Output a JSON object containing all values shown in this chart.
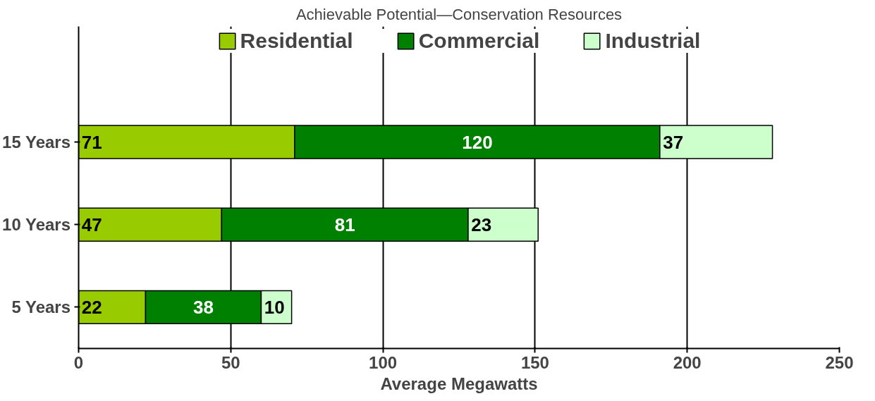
{
  "chart_data": {
    "type": "bar",
    "orientation": "horizontal",
    "stacked": true,
    "title": "Achievable Potential—Conservation Resources",
    "xlabel": "Average Megawatts",
    "categories": [
      "15 Years",
      "10 Years",
      "5 Years"
    ],
    "series": [
      {
        "name": "Residential",
        "color": "#99cc00",
        "values": [
          71,
          47,
          22
        ]
      },
      {
        "name": "Commercial",
        "color": "#008000",
        "values": [
          120,
          81,
          38
        ]
      },
      {
        "name": "Industrial",
        "color": "#ccffcc",
        "values": [
          37,
          23,
          10
        ]
      }
    ],
    "xlim": [
      0,
      250
    ],
    "xticks": [
      0,
      50,
      100,
      150,
      200,
      250
    ],
    "data_labels": true,
    "grid": "x",
    "legend": "top"
  }
}
